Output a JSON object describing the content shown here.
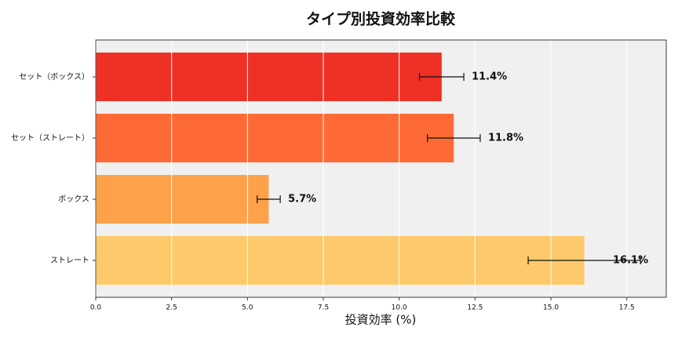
{
  "chart_data": {
    "type": "bar",
    "orientation": "horizontal",
    "title": "タイプ別投資効率比較",
    "x_label": "投資効率 (%)",
    "categories": [
      "セット（ボックス）",
      "セット（ストレート）",
      "ボックス",
      "ストレート"
    ],
    "values": [
      11.4,
      11.8,
      5.7,
      16.1
    ],
    "value_labels": [
      "11.4%",
      "11.8%",
      "5.7%",
      "16.1%"
    ],
    "errors": [
      0.73,
      0.87,
      0.38,
      1.85
    ],
    "colors": [
      "#ee3124",
      "#fe6a35",
      "#fda24a",
      "#fdc96a"
    ],
    "xlim": [
      0,
      18.8
    ],
    "xticks": [
      {
        "value": 0,
        "label": "0.0"
      },
      2.5,
      {
        "value": 5,
        "label": "5.0"
      },
      7.5,
      {
        "value": 10,
        "label": "10.0"
      },
      12.5,
      {
        "value": 15,
        "label": "15.0"
      },
      17.5
    ],
    "grid": true
  }
}
